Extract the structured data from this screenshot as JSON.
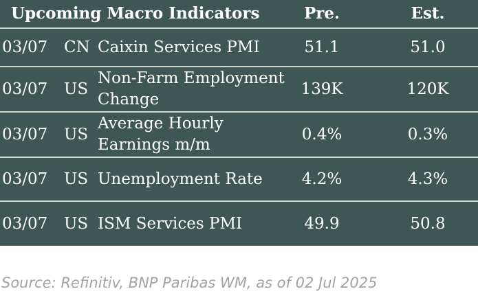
{
  "table": {
    "title": "Upcoming Macro Indicators",
    "pre_header": "Pre.",
    "est_header": "Est.",
    "rows": [
      {
        "date": "03/07",
        "country": "CN",
        "name": "Caixin Services PMI",
        "pre": "51.1",
        "est": "51.0"
      },
      {
        "date": "03/07",
        "country": "US",
        "name": "Non-Farm Employment Change",
        "pre": "139K",
        "est": "120K"
      },
      {
        "date": "03/07",
        "country": "US",
        "name": "Average Hourly Earnings m/m",
        "pre": "0.4%",
        "est": "0.3%"
      },
      {
        "date": "03/07",
        "country": "US",
        "name": "Unemployment Rate",
        "pre": "4.2%",
        "est": "4.3%"
      },
      {
        "date": "03/07",
        "country": "US",
        "name": "ISM Services PMI",
        "pre": "49.9",
        "est": "50.8"
      }
    ]
  },
  "source": "Source: Refinitiv, BNP Paribas WM, as of 02 Jul 2025",
  "colors": {
    "table_background": "#3f5754",
    "row_divider": "#c9d6c9",
    "header_text": "#ffffff",
    "source_text": "#a3a3a3"
  }
}
